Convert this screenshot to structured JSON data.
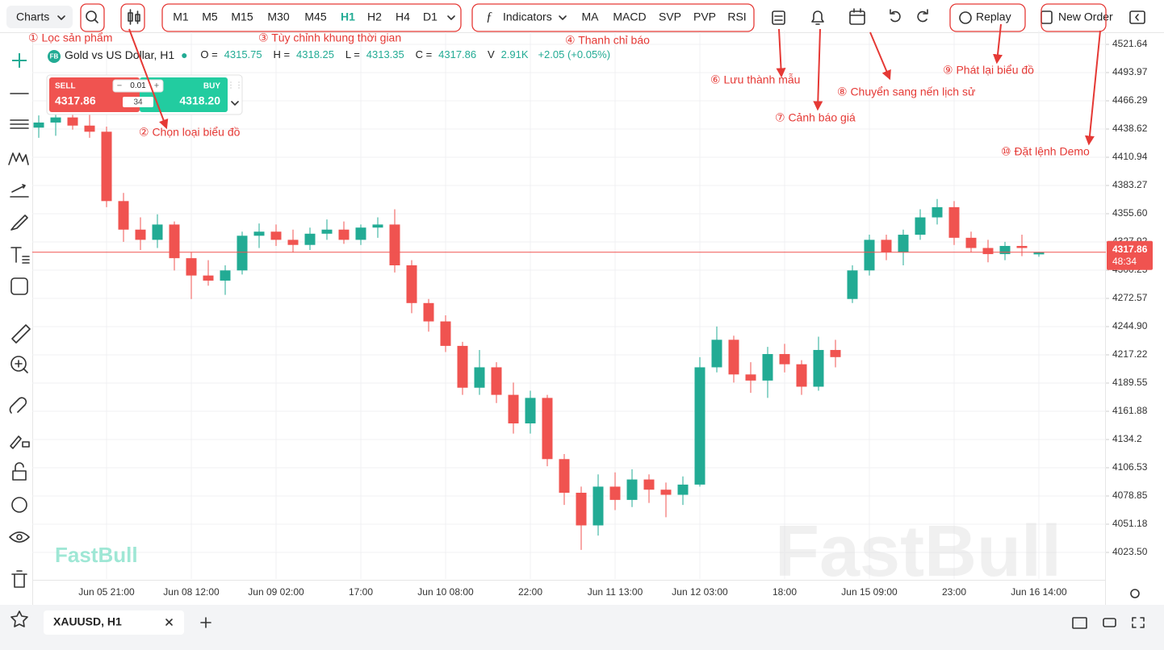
{
  "toolbar": {
    "charts": "Charts",
    "timeframes": [
      "M1",
      "M5",
      "M15",
      "M30",
      "M45",
      "H1",
      "H2",
      "H4",
      "D1"
    ],
    "indicators": "Indicators",
    "indicator_shortcuts": [
      "MA",
      "MACD",
      "SVP",
      "PVP",
      "RSI"
    ],
    "replay": "Replay",
    "new_order": "New Order"
  },
  "annotations": [
    "① Lọc sản phẩm",
    "② Chọn loại biểu đồ",
    "③ Tùy chỉnh khung thời gian",
    "④ Thanh chỉ báo",
    "⑥  Lưu thành mẫu",
    "⑦ Cảnh báo giá",
    "⑧ Chuyển sang nến lịch sử",
    "⑨ Phát lại biểu đồ",
    "⑩ Đặt lệnh Demo"
  ],
  "symbol": {
    "badge": "FB",
    "name": "Gold vs US Dollar, H1",
    "o_label": "O =",
    "o": "4315.75",
    "h_label": "H =",
    "h": "4318.25",
    "l_label": "L =",
    "l": "4313.35",
    "c_label": "C =",
    "c": "4317.86",
    "v_label": "V",
    "v": "2.91K",
    "change": "+2.05 (+0.05%)"
  },
  "order_panel": {
    "sell": "SELL",
    "sell_price": "4317.86",
    "buy": "BUY",
    "buy_price": "4318.20",
    "quantity": "0.01",
    "spread": "34"
  },
  "watermark": "FastBull",
  "tab": "XAUUSD, H1",
  "chart_data": {
    "type": "candlestick",
    "categories": [
      null,
      null,
      null,
      null,
      "Jun 05 21:00",
      null,
      null,
      null,
      null,
      "Jun 08 12:00",
      null,
      null,
      null,
      null,
      "Jun 09 02:00",
      null,
      null,
      null,
      null,
      "17:00",
      null,
      null,
      null,
      null,
      "Jun 10 08:00",
      null,
      null,
      null,
      null,
      "22:00",
      null,
      null,
      null,
      null,
      "Jun 11 13:00",
      null,
      null,
      null,
      null,
      "Jun 12 03:00",
      null,
      null,
      null,
      null,
      "18:00",
      null,
      null,
      null,
      null,
      "Jun 15 09:00",
      null,
      null,
      null,
      null,
      "23:00",
      null,
      null,
      null,
      null,
      "Jun 16 14:00"
    ],
    "open": [
      4440,
      4445,
      4450,
      4442,
      4436,
      4368,
      4340,
      4330,
      4345,
      4312,
      4295,
      4290,
      4300,
      4334,
      4338,
      4330,
      4325,
      4336,
      4340,
      4330,
      4342,
      4345,
      4305,
      4268,
      4250,
      4226,
      4185,
      4205,
      4178,
      4150,
      4175,
      4115,
      4082,
      4050,
      4088,
      4075,
      4095,
      4085,
      4080,
      4090,
      4205,
      4232,
      4198,
      4192,
      4218,
      4208,
      4186,
      4222,
      4272,
      4300,
      4330,
      4318,
      4335,
      4352,
      4362,
      4332,
      4322,
      4316,
      4324,
      4315.75
    ],
    "high": [
      4452,
      4458,
      4460,
      4455,
      4441,
      4376,
      4352,
      4355,
      4348,
      4318,
      4310,
      4305,
      4338,
      4346,
      4345,
      4340,
      4342,
      4350,
      4348,
      4345,
      4352,
      4360,
      4310,
      4272,
      4256,
      4230,
      4222,
      4210,
      4190,
      4182,
      4178,
      4120,
      4088,
      4100,
      4102,
      4105,
      4100,
      4092,
      4098,
      4215,
      4245,
      4236,
      4210,
      4225,
      4228,
      4212,
      4235,
      4232,
      4305,
      4335,
      4335,
      4340,
      4360,
      4370,
      4368,
      4338,
      4330,
      4328,
      4335,
      4318.25
    ],
    "low": [
      4430,
      4432,
      4438,
      4430,
      4362,
      4328,
      4320,
      4322,
      4300,
      4272,
      4285,
      4276,
      4296,
      4322,
      4324,
      4318,
      4320,
      4330,
      4326,
      4325,
      4332,
      4298,
      4258,
      4240,
      4220,
      4178,
      4178,
      4170,
      4140,
      4140,
      4108,
      4070,
      4026,
      4040,
      4065,
      4068,
      4072,
      4058,
      4070,
      4088,
      4200,
      4190,
      4180,
      4175,
      4200,
      4178,
      4182,
      4205,
      4268,
      4295,
      4310,
      4305,
      4330,
      4345,
      4325,
      4318,
      4308,
      4310,
      4314,
      4313.35
    ],
    "close": [
      4445,
      4450,
      4442,
      4436,
      4368,
      4340,
      4330,
      4345,
      4312,
      4295,
      4290,
      4300,
      4334,
      4338,
      4330,
      4325,
      4336,
      4340,
      4330,
      4342,
      4345,
      4305,
      4268,
      4250,
      4226,
      4185,
      4205,
      4178,
      4150,
      4175,
      4115,
      4082,
      4050,
      4088,
      4075,
      4095,
      4085,
      4080,
      4090,
      4205,
      4232,
      4198,
      4192,
      4218,
      4208,
      4186,
      4222,
      4215,
      4300,
      4330,
      4318,
      4335,
      4352,
      4362,
      4332,
      4322,
      4316,
      4324,
      4322,
      4317.86
    ],
    "up_color": "#22ab94",
    "down_color": "#f05350",
    "ylim": [
      3997.4,
      4535.1
    ],
    "yticks": [
      4521.64,
      4493.97,
      4466.29,
      4438.62,
      4410.94,
      4383.27,
      {
        "value": 4355.6,
        "label": "4355.60"
      },
      4327.92,
      4300.25,
      4272.57,
      {
        "value": 4244.9,
        "label": "4244.90"
      },
      4217.22,
      4189.55,
      4161.88,
      4134.2,
      4106.53,
      4078.85,
      4051.18,
      {
        "value": 4023.5,
        "label": "4023.50"
      }
    ],
    "grid": true,
    "last_price": 4317.86,
    "countdown": "48:34"
  }
}
